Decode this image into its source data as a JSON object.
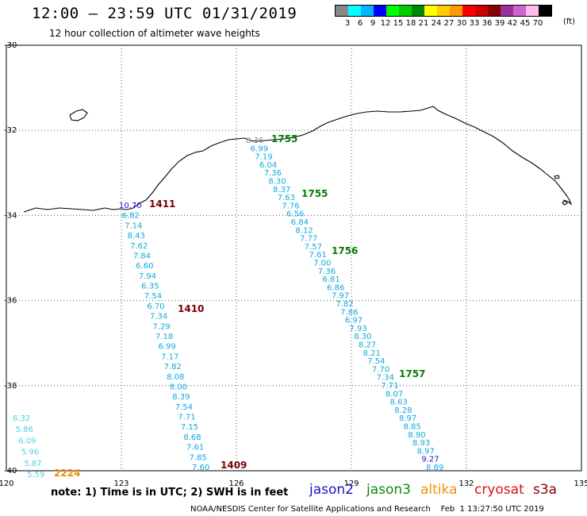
{
  "header": {
    "title": "12:00 – 23:59 UTC 01/31/2019",
    "subtitle": "12 hour collection of altimeter wave heights"
  },
  "colorbar": {
    "unit": "(ft)",
    "labels": [
      "3",
      "6",
      "9",
      "12",
      "15",
      "18",
      "21",
      "24",
      "27",
      "30",
      "33",
      "36",
      "39",
      "42",
      "45",
      "70"
    ],
    "colors": [
      "#888888",
      "#00ffff",
      "#00b4ff",
      "#0000ff",
      "#00ff00",
      "#00cc00",
      "#008800",
      "#ffff00",
      "#ffcc00",
      "#ff9900",
      "#ff0000",
      "#cc0000",
      "#880000",
      "#993399",
      "#cc66cc",
      "#ffbbee",
      "#000000"
    ]
  },
  "axes": {
    "lon_labels": [
      "120",
      "123",
      "126",
      "129",
      "132",
      "135"
    ],
    "lat_labels": [
      "-30",
      "-32",
      "-34",
      "-36",
      "-38",
      "-40"
    ]
  },
  "tracks": [
    {
      "satellite": "altika",
      "color": "#4fcee8",
      "values": [
        "6.32",
        "5.86",
        "6.09",
        "5.96",
        "5.87",
        "5.59"
      ],
      "time": "2224",
      "time_color": "#e8900a"
    },
    {
      "satellite": "s3a",
      "color": "#0fa8dd",
      "values": [
        "10.70",
        "6.82",
        "7.14",
        "8.43",
        "7.62",
        "7.84",
        "6.60",
        "7.94",
        "6.35",
        "7.54",
        "6.70",
        "7.34",
        "7.29",
        "7.18",
        "6.99",
        "7.17",
        "7.82",
        "8.08",
        "8.00",
        "8.39",
        "7.54",
        "7.71",
        "7.15",
        "8.68",
        "7.61",
        "7.85",
        "7.60"
      ],
      "times": [
        "1411",
        "1410",
        "1409"
      ],
      "time_color": "#7a0000"
    },
    {
      "satellite": "jason3",
      "color": "#0fa8dd",
      "values": [
        "8.36",
        "6.99",
        "7.19",
        "6.04",
        "7.36",
        "8.30",
        "8.37",
        "7.63",
        "7.76",
        "6.56",
        "6.84",
        "8.12",
        "7.77",
        "7.57",
        "7.61",
        "7.00",
        "7.36",
        "6.81",
        "6.86",
        "7.97",
        "7.82",
        "7.86",
        "6.97",
        "7.93",
        "8.30",
        "8.27",
        "8.21",
        "7.54",
        "7.70",
        "7.34",
        "7.71",
        "8.07",
        "8.63",
        "8.28",
        "8.97",
        "8.85",
        "8.90",
        "8.93",
        "8.97",
        "9.27",
        "8.89"
      ],
      "times": [
        "1755",
        "1755",
        "1756",
        "1757"
      ],
      "time_color": "#0a7a0a"
    }
  ],
  "footer": {
    "note": "note: 1) Time is in UTC; 2) SWH is in feet",
    "legend": [
      {
        "name": "jason2",
        "color": "#1515cc"
      },
      {
        "name": "jason3",
        "color": "#0a8a0a"
      },
      {
        "name": "altika",
        "color": "#f09010"
      },
      {
        "name": "cryosat",
        "color": "#e01010"
      },
      {
        "name": "s3a",
        "color": "#880000"
      }
    ],
    "credit": "NOAA/NESDIS Center for Satellite Applications and Research    Feb  1 13:27:50 UTC 2019"
  }
}
